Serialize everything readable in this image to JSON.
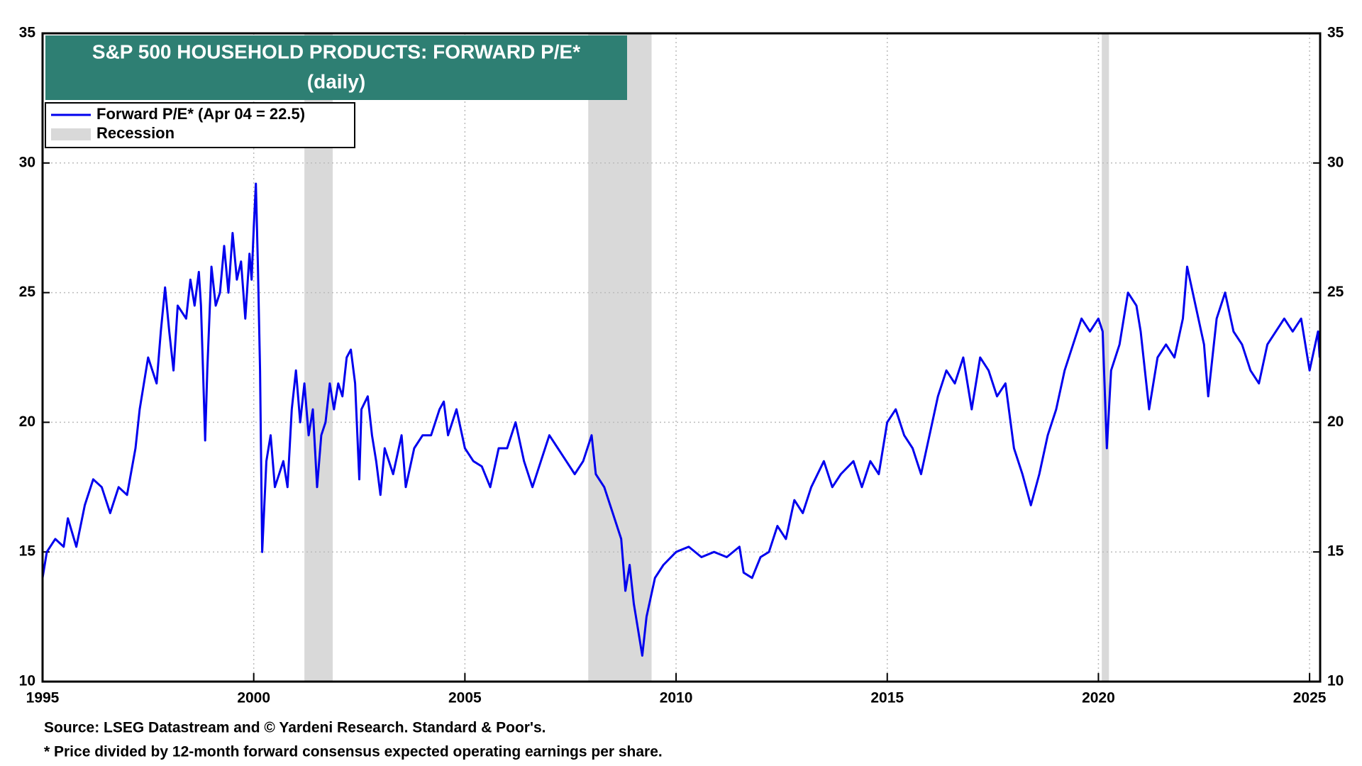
{
  "chart_data": {
    "type": "line",
    "title": "S&P 500 HOUSEHOLD PRODUCTS: FORWARD P/E*",
    "subtitle": "(daily)",
    "sources": [
      "Source: LSEG Datastream and © Yardeni Research. Standard & Poor's.",
      "* Price divided by 12-month forward consensus expected operating earnings per share."
    ],
    "recession_label": "Recession",
    "recession_color": "#d9d9d9",
    "recessions": [
      [
        2001.2,
        2001.87
      ],
      [
        2007.92,
        2009.42
      ],
      [
        2020.08,
        2020.25
      ]
    ],
    "xlim": [
      1995,
      2025.25
    ],
    "xticks": [
      1995,
      2000,
      2005,
      2010,
      2015,
      2020,
      2025
    ],
    "ylim": [
      10,
      35
    ],
    "yticks": [
      10,
      15,
      20,
      25,
      30,
      35
    ],
    "grid": true,
    "legend": "upper left",
    "series": [
      {
        "name": "Forward P/E* (Apr 04 = 22.5)",
        "color": "#0000ee",
        "x": [
          1995.0,
          1995.1,
          1995.3,
          1995.5,
          1995.6,
          1995.8,
          1996.0,
          1996.2,
          1996.4,
          1996.6,
          1996.8,
          1997.0,
          1997.2,
          1997.3,
          1997.5,
          1997.7,
          1997.8,
          1997.9,
          1998.0,
          1998.1,
          1998.2,
          1998.4,
          1998.5,
          1998.6,
          1998.7,
          1998.75,
          1998.8,
          1998.85,
          1998.9,
          1999.0,
          1999.1,
          1999.2,
          1999.3,
          1999.4,
          1999.5,
          1999.6,
          1999.7,
          1999.8,
          1999.9,
          1999.95,
          2000.0,
          2000.05,
          2000.1,
          2000.15,
          2000.2,
          2000.3,
          2000.4,
          2000.5,
          2000.7,
          2000.8,
          2000.9,
          2001.0,
          2001.1,
          2001.2,
          2001.3,
          2001.4,
          2001.5,
          2001.6,
          2001.7,
          2001.8,
          2001.9,
          2002.0,
          2002.1,
          2002.2,
          2002.3,
          2002.4,
          2002.5,
          2002.55,
          2002.7,
          2002.8,
          2002.9,
          2003.0,
          2003.1,
          2003.3,
          2003.5,
          2003.6,
          2003.8,
          2004.0,
          2004.2,
          2004.4,
          2004.5,
          2004.6,
          2004.8,
          2005.0,
          2005.2,
          2005.4,
          2005.6,
          2005.8,
          2006.0,
          2006.2,
          2006.4,
          2006.6,
          2006.8,
          2007.0,
          2007.2,
          2007.4,
          2007.6,
          2007.8,
          2008.0,
          2008.1,
          2008.3,
          2008.5,
          2008.7,
          2008.8,
          2008.9,
          2009.0,
          2009.1,
          2009.2,
          2009.3,
          2009.5,
          2009.7,
          2010.0,
          2010.3,
          2010.6,
          2010.9,
          2011.2,
          2011.5,
          2011.6,
          2011.8,
          2012.0,
          2012.2,
          2012.4,
          2012.6,
          2012.8,
          2013.0,
          2013.2,
          2013.5,
          2013.7,
          2013.9,
          2014.2,
          2014.4,
          2014.6,
          2014.8,
          2015.0,
          2015.2,
          2015.4,
          2015.6,
          2015.8,
          2016.0,
          2016.2,
          2016.4,
          2016.6,
          2016.8,
          2017.0,
          2017.2,
          2017.4,
          2017.6,
          2017.8,
          2018.0,
          2018.2,
          2018.4,
          2018.6,
          2018.8,
          2019.0,
          2019.2,
          2019.4,
          2019.6,
          2019.8,
          2020.0,
          2020.1,
          2020.2,
          2020.3,
          2020.5,
          2020.7,
          2020.9,
          2021.0,
          2021.2,
          2021.4,
          2021.6,
          2021.8,
          2022.0,
          2022.1,
          2022.3,
          2022.5,
          2022.6,
          2022.8,
          2023.0,
          2023.2,
          2023.4,
          2023.6,
          2023.8,
          2024.0,
          2024.2,
          2024.4,
          2024.6,
          2024.8,
          2025.0,
          2025.2,
          2025.24
        ],
        "values": [
          14.0,
          15.0,
          15.5,
          15.2,
          16.3,
          15.2,
          16.8,
          17.8,
          17.5,
          16.5,
          17.5,
          17.2,
          19.0,
          20.5,
          22.5,
          21.5,
          23.5,
          25.2,
          23.5,
          22.0,
          24.5,
          24.0,
          25.5,
          24.5,
          25.8,
          24.5,
          22.0,
          19.3,
          22.0,
          26.0,
          24.5,
          25.0,
          26.8,
          25.0,
          27.3,
          25.5,
          26.2,
          24.0,
          26.5,
          25.5,
          27.5,
          29.2,
          26.0,
          22.0,
          15.0,
          18.5,
          19.5,
          17.5,
          18.5,
          17.5,
          20.5,
          22.0,
          20.0,
          21.5,
          19.5,
          20.5,
          17.5,
          19.5,
          20.0,
          21.5,
          20.5,
          21.5,
          21.0,
          22.5,
          22.8,
          21.5,
          17.8,
          20.5,
          21.0,
          19.5,
          18.5,
          17.2,
          19.0,
          18.0,
          19.5,
          17.5,
          19.0,
          19.5,
          19.5,
          20.5,
          20.8,
          19.5,
          20.5,
          19.0,
          18.5,
          18.3,
          17.5,
          19.0,
          19.0,
          20.0,
          18.5,
          17.5,
          18.5,
          19.5,
          19.0,
          18.5,
          18.0,
          18.5,
          19.5,
          18.0,
          17.5,
          16.5,
          15.5,
          13.5,
          14.5,
          13.0,
          12.0,
          11.0,
          12.5,
          14.0,
          14.5,
          15.0,
          15.2,
          14.8,
          15.0,
          14.8,
          15.2,
          14.2,
          14.0,
          14.8,
          15.0,
          16.0,
          15.5,
          17.0,
          16.5,
          17.5,
          18.5,
          17.5,
          18.0,
          18.5,
          17.5,
          18.5,
          18.0,
          20.0,
          20.5,
          19.5,
          19.0,
          18.0,
          19.5,
          21.0,
          22.0,
          21.5,
          22.5,
          20.5,
          22.5,
          22.0,
          21.0,
          21.5,
          19.0,
          18.0,
          16.8,
          18.0,
          19.5,
          20.5,
          22.0,
          23.0,
          24.0,
          23.5,
          24.0,
          23.5,
          19.0,
          22.0,
          23.0,
          25.0,
          24.5,
          23.5,
          20.5,
          22.5,
          23.0,
          22.5,
          24.0,
          26.0,
          24.5,
          23.0,
          21.0,
          24.0,
          25.0,
          23.5,
          23.0,
          22.0,
          21.5,
          23.0,
          23.5,
          24.0,
          23.5,
          24.0,
          22.0,
          23.5,
          22.5
        ]
      }
    ]
  }
}
